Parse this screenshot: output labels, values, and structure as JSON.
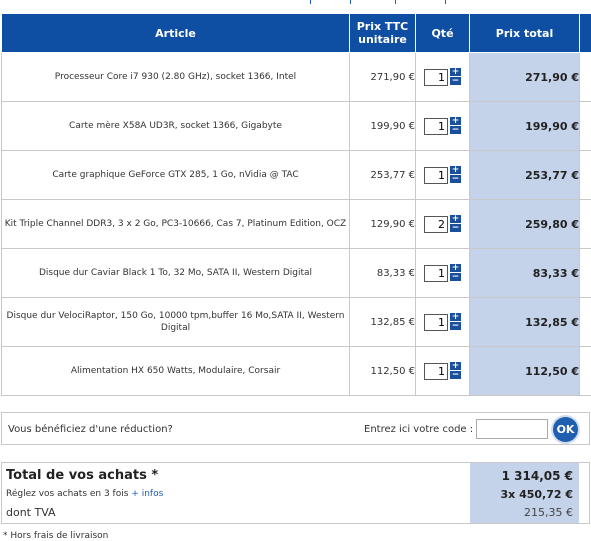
{
  "table": {
    "headers": {
      "article": "Article",
      "price_line1": "Prix TTC",
      "price_line2": "unitaire",
      "qty": "Qté",
      "total": "Prix total"
    },
    "rows": [
      {
        "article": "Processeur Core i7 930 (2.80 GHz), socket 1366, Intel",
        "price": "271,90 €",
        "qty": "1",
        "total": "271,90 €"
      },
      {
        "article": "Carte mère X58A UD3R, socket 1366, Gigabyte",
        "price": "199,90 €",
        "qty": "1",
        "total": "199,90 €"
      },
      {
        "article": "Carte graphique GeForce GTX 285, 1 Go, nVidia @ TAC",
        "price": "253,77 €",
        "qty": "1",
        "total": "253,77 €"
      },
      {
        "article": "Kit Triple Channel DDR3, 3 x 2 Go, PC3-10666, Cas 7, Platinum Edition, OCZ",
        "price": "129,90 €",
        "qty": "2",
        "total": "259,80 €"
      },
      {
        "article": "Disque dur Caviar Black 1 To, 32 Mo, SATA II, Western Digital",
        "price": "83,33 €",
        "qty": "1",
        "total": "83,33 €"
      },
      {
        "article": "Disque dur VelociRaptor, 150 Go, 10000 tpm,buffer 16 Mo,SATA II, Western Digital",
        "price": "132,85 €",
        "qty": "1",
        "total": "132,85 €"
      },
      {
        "article": "Alimentation HX 650 Watts, Modulaire, Corsair",
        "price": "112,50 €",
        "qty": "1",
        "total": "112,50 €"
      }
    ],
    "stepper_plus": "+",
    "stepper_minus": "−"
  },
  "promo": {
    "question": "Vous bénéficiez d'une réduction?",
    "code_label": "Entrez ici votre code :",
    "code_value": "",
    "ok_label": "OK"
  },
  "summary": {
    "title": "Total de vos achats *",
    "total_value": "1 314,05 €",
    "installments_text": "Réglez vos achats en 3 fois",
    "installments_link": "+ infos",
    "installments_value": "3x  450,72 €",
    "vat_label": "dont TVA",
    "vat_value": "215,35 €"
  },
  "footnote": "* Hors frais de livraison",
  "colors": {
    "header_blue": "#0f4fa3",
    "total_column_bg": "#c5d3ea",
    "link_blue": "#1f5fb0"
  }
}
